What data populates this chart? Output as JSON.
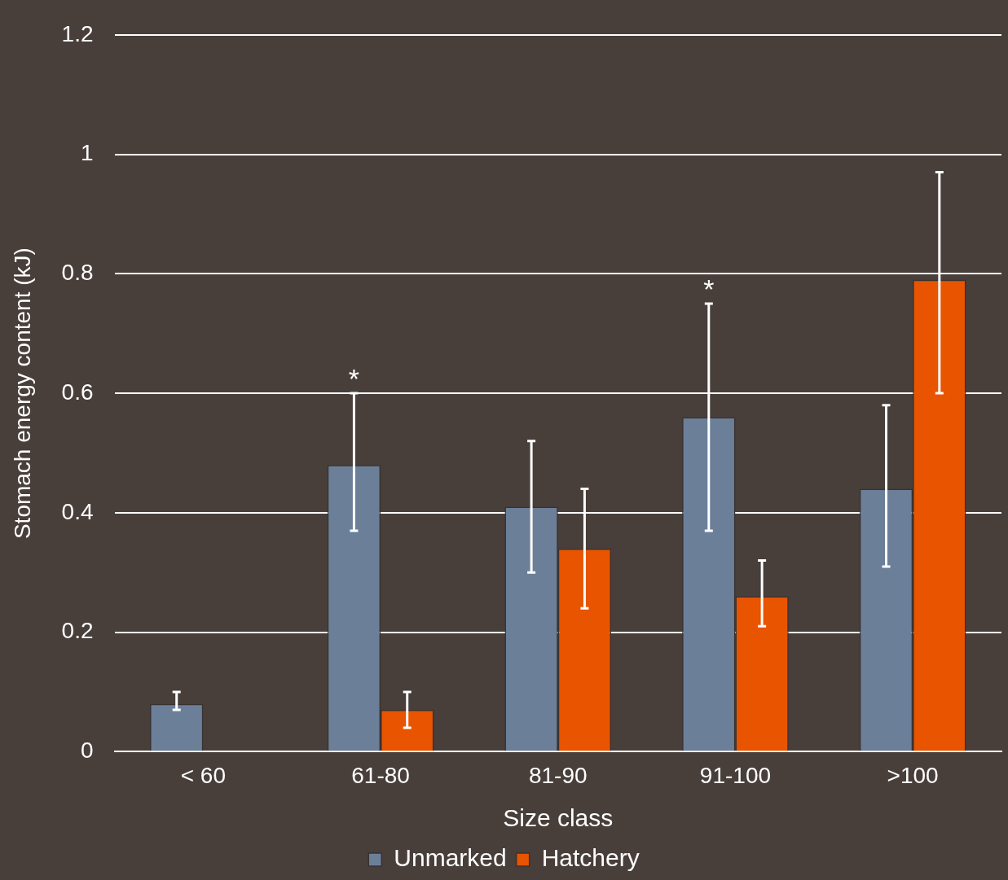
{
  "chart_data": {
    "type": "bar",
    "xlabel": "Size class",
    "ylabel": "Stomach energy content (kJ)",
    "categories": [
      "< 60",
      "61-80",
      "81-90",
      "91-100",
      ">100"
    ],
    "series": [
      {
        "name": "Unmarked",
        "color": "#6b7f99",
        "values": [
          0.08,
          0.48,
          0.41,
          0.56,
          0.44
        ],
        "errors": [
          [
            0.07,
            0.1
          ],
          [
            0.37,
            0.6
          ],
          [
            0.3,
            0.52
          ],
          [
            0.37,
            0.75
          ],
          [
            0.31,
            0.58
          ]
        ]
      },
      {
        "name": "Hatchery",
        "color": "#e85400",
        "values": [
          null,
          0.07,
          0.34,
          0.26,
          0.79
        ],
        "errors": [
          null,
          [
            0.04,
            0.1
          ],
          [
            0.24,
            0.44
          ],
          [
            0.21,
            0.32
          ],
          [
            0.6,
            0.97
          ]
        ]
      }
    ],
    "ylim": [
      0,
      1.2
    ],
    "yticks": [
      0,
      0.2,
      0.4,
      0.6,
      0.8,
      1,
      1.2
    ],
    "grid": "y",
    "legend": "bottom",
    "annotations": [
      "*",
      "*"
    ]
  }
}
